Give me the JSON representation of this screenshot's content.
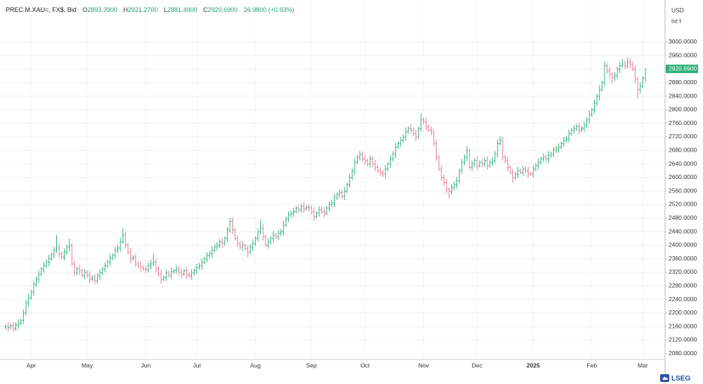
{
  "chart_data": {
    "type": "ohlc",
    "header": {
      "symbol": "PREC.M.XAU=, FX$, Bid",
      "items": [
        {
          "key": "O",
          "value": "2893.3900"
        },
        {
          "key": "H",
          "value": "2921.2700"
        },
        {
          "key": "L",
          "value": "2881.4900"
        },
        {
          "key": "C",
          "value": "2920.6900"
        }
      ],
      "change": "26.9800 (+0.93%)"
    },
    "currency": "USD",
    "unit": "oz t",
    "logo": "LSEG",
    "up_color": "#2fb27a",
    "down_color": "#e87a90",
    "grid": true,
    "ylim": [
      2063,
      3124
    ],
    "yticks": [
      {
        "value": 2080,
        "label": "2080.0000"
      },
      {
        "value": 2120,
        "label": "2120.0000"
      },
      {
        "value": 2160,
        "label": "2160.0000"
      },
      {
        "value": 2200,
        "label": "2200.0000"
      },
      {
        "value": 2240,
        "label": "2240.0000"
      },
      {
        "value": 2280,
        "label": "2280.0000"
      },
      {
        "value": 2320,
        "label": "2320.0000"
      },
      {
        "value": 2360,
        "label": "2360.0000"
      },
      {
        "value": 2400,
        "label": "2400.0000"
      },
      {
        "value": 2440,
        "label": "2440.0000"
      },
      {
        "value": 2480,
        "label": "2480.0000"
      },
      {
        "value": 2520,
        "label": "2520.0000"
      },
      {
        "value": 2560,
        "label": "2560.0000"
      },
      {
        "value": 2600,
        "label": "2600.0000"
      },
      {
        "value": 2640,
        "label": "2640.0000"
      },
      {
        "value": 2680,
        "label": "2680.0000"
      },
      {
        "value": 2720,
        "label": "2720.0000"
      },
      {
        "value": 2760,
        "label": "2760.0000"
      },
      {
        "value": 2800,
        "label": "2800.0000"
      },
      {
        "value": 2840,
        "label": "2840.0000"
      },
      {
        "value": 2880,
        "label": "2880.0000"
      },
      {
        "value": 2920,
        "label": "2920.0000"
      },
      {
        "value": 2960,
        "label": "2960.0000"
      },
      {
        "value": 3000,
        "label": "3000.0000"
      }
    ],
    "categories": [
      null,
      null,
      null,
      null,
      null,
      null,
      null,
      null,
      null,
      null,
      "Apr",
      null,
      null,
      null,
      null,
      null,
      null,
      null,
      null,
      null,
      null,
      null,
      null,
      null,
      null,
      null,
      null,
      null,
      null,
      null,
      null,
      null,
      "May",
      null,
      null,
      null,
      null,
      null,
      null,
      null,
      null,
      null,
      null,
      null,
      null,
      null,
      null,
      null,
      null,
      null,
      null,
      null,
      null,
      null,
      null,
      "Jun",
      null,
      null,
      null,
      null,
      null,
      null,
      null,
      null,
      null,
      null,
      null,
      null,
      null,
      null,
      null,
      null,
      null,
      null,
      null,
      "Jul",
      null,
      null,
      null,
      null,
      null,
      null,
      null,
      null,
      null,
      null,
      null,
      null,
      null,
      null,
      null,
      null,
      null,
      null,
      null,
      null,
      null,
      null,
      "Aug",
      null,
      null,
      null,
      null,
      null,
      null,
      null,
      null,
      null,
      null,
      null,
      null,
      null,
      null,
      null,
      null,
      null,
      null,
      null,
      null,
      null,
      "Sep",
      null,
      null,
      null,
      null,
      null,
      null,
      null,
      null,
      null,
      null,
      null,
      null,
      null,
      null,
      null,
      null,
      null,
      null,
      null,
      null,
      "Oct",
      null,
      null,
      null,
      null,
      null,
      null,
      null,
      null,
      null,
      null,
      null,
      null,
      null,
      null,
      null,
      null,
      null,
      null,
      null,
      null,
      null,
      null,
      "Nov",
      null,
      null,
      null,
      null,
      null,
      null,
      null,
      null,
      null,
      null,
      null,
      null,
      null,
      null,
      null,
      null,
      null,
      null,
      null,
      null,
      "Dec",
      null,
      null,
      null,
      null,
      null,
      null,
      null,
      null,
      null,
      null,
      null,
      null,
      null,
      null,
      null,
      null,
      null,
      null,
      null,
      null,
      null,
      "2025",
      null,
      null,
      null,
      null,
      null,
      null,
      null,
      null,
      null,
      null,
      null,
      null,
      null,
      null,
      null,
      null,
      null,
      null,
      null,
      null,
      null,
      null,
      "Feb",
      null,
      null,
      null,
      null,
      null,
      null,
      null,
      null,
      null,
      null,
      null,
      null,
      null,
      null,
      null,
      null,
      null,
      null,
      null,
      "Mar",
      null
    ],
    "open": [
      2158,
      2160,
      2158,
      2163,
      2155,
      2165,
      2170,
      2178,
      2200,
      2230,
      2245,
      2262,
      2285,
      2300,
      2315,
      2330,
      2340,
      2350,
      2360,
      2372,
      2385,
      2392,
      2375,
      2365,
      2380,
      2395,
      2400,
      2345,
      2320,
      2330,
      2325,
      2310,
      2320,
      2312,
      2300,
      2305,
      2295,
      2310,
      2318,
      2330,
      2340,
      2350,
      2362,
      2370,
      2385,
      2392,
      2410,
      2430,
      2400,
      2380,
      2360,
      2365,
      2345,
      2340,
      2335,
      2330,
      2328,
      2340,
      2345,
      2350,
      2330,
      2315,
      2300,
      2305,
      2318,
      2312,
      2322,
      2325,
      2330,
      2320,
      2315,
      2325,
      2312,
      2310,
      2318,
      2325,
      2335,
      2340,
      2350,
      2360,
      2370,
      2375,
      2385,
      2395,
      2400,
      2410,
      2405,
      2420,
      2445,
      2470,
      2445,
      2420,
      2405,
      2395,
      2400,
      2390,
      2380,
      2395,
      2405,
      2420,
      2440,
      2450,
      2425,
      2400,
      2410,
      2420,
      2430,
      2425,
      2435,
      2440,
      2460,
      2478,
      2490,
      2495,
      2500,
      2510,
      2505,
      2515,
      2508,
      2512,
      2510,
      2498,
      2485,
      2495,
      2505,
      2500,
      2495,
      2510,
      2520,
      2525,
      2540,
      2550,
      2555,
      2545,
      2560,
      2580,
      2600,
      2620,
      2645,
      2660,
      2668,
      2655,
      2650,
      2640,
      2655,
      2640,
      2630,
      2620,
      2615,
      2610,
      2625,
      2640,
      2655,
      2670,
      2690,
      2700,
      2710,
      2720,
      2735,
      2745,
      2740,
      2730,
      2720,
      2745,
      2770,
      2765,
      2750,
      2740,
      2735,
      2700,
      2660,
      2625,
      2600,
      2585,
      2565,
      2560,
      2570,
      2580,
      2590,
      2620,
      2645,
      2660,
      2680,
      2630,
      2640,
      2650,
      2635,
      2645,
      2640,
      2650,
      2635,
      2645,
      2650,
      2670,
      2700,
      2710,
      2660,
      2650,
      2630,
      2615,
      2600,
      2610,
      2620,
      2615,
      2625,
      2620,
      2612,
      2610,
      2625,
      2635,
      2645,
      2655,
      2660,
      2655,
      2665,
      2670,
      2680,
      2685,
      2690,
      2700,
      2710,
      2715,
      2730,
      2740,
      2745,
      2750,
      2740,
      2745,
      2755,
      2770,
      2785,
      2800,
      2820,
      2840,
      2860,
      2880,
      2930,
      2915,
      2905,
      2895,
      2900,
      2920,
      2930,
      2935,
      2930,
      2940,
      2935,
      2920,
      2890,
      2860,
      2870,
      2893.39
    ],
    "high": [
      2168,
      2172,
      2169,
      2173,
      2173,
      2182,
      2184,
      2210,
      2238,
      2257,
      2268,
      2295,
      2308,
      2327,
      2336,
      2350,
      2358,
      2372,
      2378,
      2395,
      2430,
      2404,
      2381,
      2390,
      2403,
      2420,
      2406,
      2355,
      2338,
      2342,
      2331,
      2330,
      2328,
      2324,
      2311,
      2315,
      2318,
      2330,
      2336,
      2350,
      2358,
      2374,
      2376,
      2395,
      2400,
      2422,
      2450,
      2440,
      2408,
      2392,
      2371,
      2375,
      2353,
      2352,
      2341,
      2340,
      2348,
      2357,
      2375,
      2360,
      2338,
      2327,
      2311,
      2328,
      2326,
      2334,
      2331,
      2340,
      2338,
      2332,
      2331,
      2335,
      2320,
      2330,
      2331,
      2345,
      2348,
      2362,
      2366,
      2380,
      2383,
      2397,
      2401,
      2410,
      2418,
      2422,
      2426,
      2455,
      2480,
      2482,
      2451,
      2430,
      2413,
      2412,
      2406,
      2400,
      2403,
      2417,
      2426,
      2450,
      2475,
      2462,
      2431,
      2420,
      2428,
      2442,
      2436,
      2445,
      2448,
      2472,
      2484,
      2500,
      2503,
      2512,
      2516,
      2520,
      2523,
      2527,
      2518,
      2522,
      2518,
      2510,
      2501,
      2515,
      2513,
      2512,
      2516,
      2530,
      2533,
      2552,
      2556,
      2565,
      2563,
      2572,
      2586,
      2610,
      2628,
      2657,
      2666,
      2678,
      2676,
      2667,
      2656,
      2665,
      2663,
      2652,
      2636,
      2630,
      2623,
      2637,
      2646,
      2665,
      2678,
      2702,
      2706,
      2720,
      2728,
      2747,
      2751,
      2755,
      2748,
      2742,
      2751,
      2790,
      2778,
      2777,
      2756,
      2750,
      2743,
      2712,
      2666,
      2635,
      2608,
      2597,
      2571,
      2580,
      2588,
      2602,
      2626,
      2655,
      2668,
      2692,
      2686,
      2650,
      2658,
      2662,
      2651,
      2655,
      2658,
      2662,
      2651,
      2660,
      2678,
      2712,
      2722,
      2720,
      2668,
      2662,
      2636,
      2625,
      2618,
      2632,
      2626,
      2635,
      2633,
      2632,
      2618,
      2635,
      2643,
      2657,
      2661,
      2670,
      2668,
      2677,
      2676,
      2690,
      2693,
      2702,
      2706,
      2720,
      2723,
      2742,
      2746,
      2755,
      2758,
      2762,
      2751,
      2765,
      2778,
      2797,
      2806,
      2830,
      2848,
      2872,
      2886,
      2942,
      2938,
      2927,
      2911,
      2910,
      2928,
      2942,
      2950,
      2945,
      2955,
      2952,
      2941,
      2930,
      2898,
      2882,
      2899,
      2921.27
    ],
    "low": [
      2150,
      2146,
      2152,
      2145,
      2147,
      2153,
      2164,
      2168,
      2192,
      2218,
      2239,
      2252,
      2277,
      2288,
      2309,
      2320,
      2332,
      2338,
      2354,
      2362,
      2377,
      2363,
      2359,
      2355,
      2372,
      2383,
      2339,
      2310,
      2312,
      2313,
      2304,
      2300,
      2304,
      2288,
      2294,
      2285,
      2287,
      2298,
      2312,
      2320,
      2332,
      2338,
      2356,
      2360,
      2377,
      2380,
      2404,
      2390,
      2372,
      2348,
      2354,
      2335,
      2332,
      2323,
      2324,
      2318,
      2320,
      2328,
      2339,
      2320,
      2307,
      2288,
      2294,
      2295,
      2304,
      2300,
      2316,
      2315,
      2312,
      2303,
      2309,
      2302,
      2302,
      2298,
      2312,
      2315,
      2327,
      2328,
      2344,
      2350,
      2362,
      2363,
      2379,
      2385,
      2392,
      2393,
      2399,
      2410,
      2437,
      2433,
      2414,
      2395,
      2387,
      2383,
      2384,
      2365,
      2372,
      2383,
      2399,
      2410,
      2432,
      2413,
      2394,
      2390,
      2402,
      2408,
      2419,
      2415,
      2427,
      2428,
      2454,
      2468,
      2482,
      2483,
      2494,
      2495,
      2497,
      2496,
      2502,
      2500,
      2490,
      2473,
      2479,
      2485,
      2492,
      2483,
      2489,
      2500,
      2512,
      2513,
      2534,
      2540,
      2537,
      2533,
      2554,
      2570,
      2592,
      2608,
      2639,
      2650,
      2647,
      2638,
      2634,
      2630,
      2632,
      2618,
      2614,
      2605,
      2602,
      2598,
      2619,
      2630,
      2647,
      2658,
      2684,
      2690,
      2702,
      2708,
      2729,
      2730,
      2722,
      2708,
      2714,
      2735,
      2757,
      2738,
      2734,
      2725,
      2692,
      2648,
      2619,
      2590,
      2577,
      2553,
      2538,
      2550,
      2562,
      2568,
      2584,
      2610,
      2637,
      2648,
      2624,
      2620,
      2632,
      2623,
      2629,
      2630,
      2632,
      2623,
      2629,
      2635,
      2642,
      2658,
      2694,
      2650,
      2642,
      2618,
      2609,
      2585,
      2592,
      2598,
      2609,
      2605,
      2612,
      2600,
      2604,
      2600,
      2617,
      2623,
      2639,
      2645,
      2647,
      2643,
      2659,
      2660,
      2672,
      2673,
      2684,
      2690,
      2702,
      2703,
      2724,
      2730,
      2737,
      2728,
      2734,
      2735,
      2747,
      2758,
      2779,
      2790,
      2812,
      2828,
      2854,
      2870,
      2907,
      2893,
      2878,
      2885,
      2892,
      2908,
      2924,
      2920,
      2922,
      2923,
      2914,
      2880,
      2832,
      2848,
      2864,
      2881.49
    ],
    "close": [
      2160,
      2158,
      2163,
      2155,
      2165,
      2170,
      2178,
      2200,
      2230,
      2245,
      2262,
      2285,
      2300,
      2315,
      2330,
      2340,
      2350,
      2360,
      2372,
      2385,
      2392,
      2375,
      2365,
      2380,
      2395,
      2400,
      2345,
      2320,
      2330,
      2325,
      2310,
      2320,
      2312,
      2300,
      2305,
      2295,
      2310,
      2318,
      2330,
      2340,
      2350,
      2362,
      2370,
      2385,
      2392,
      2410,
      2430,
      2400,
      2380,
      2360,
      2365,
      2345,
      2340,
      2335,
      2330,
      2328,
      2340,
      2345,
      2350,
      2330,
      2315,
      2300,
      2305,
      2318,
      2312,
      2322,
      2325,
      2330,
      2320,
      2315,
      2325,
      2312,
      2310,
      2318,
      2325,
      2335,
      2340,
      2350,
      2360,
      2370,
      2375,
      2385,
      2395,
      2400,
      2410,
      2405,
      2420,
      2445,
      2470,
      2445,
      2420,
      2405,
      2395,
      2400,
      2390,
      2380,
      2395,
      2405,
      2420,
      2440,
      2450,
      2425,
      2400,
      2410,
      2420,
      2430,
      2425,
      2435,
      2440,
      2460,
      2478,
      2490,
      2495,
      2500,
      2510,
      2505,
      2515,
      2508,
      2512,
      2510,
      2498,
      2485,
      2495,
      2505,
      2500,
      2495,
      2510,
      2520,
      2525,
      2540,
      2550,
      2555,
      2545,
      2560,
      2580,
      2600,
      2620,
      2645,
      2660,
      2668,
      2655,
      2650,
      2640,
      2655,
      2640,
      2630,
      2620,
      2615,
      2610,
      2625,
      2640,
      2655,
      2670,
      2690,
      2700,
      2710,
      2720,
      2735,
      2745,
      2740,
      2730,
      2720,
      2745,
      2770,
      2765,
      2750,
      2740,
      2735,
      2700,
      2660,
      2625,
      2600,
      2585,
      2565,
      2560,
      2570,
      2580,
      2590,
      2620,
      2645,
      2660,
      2680,
      2630,
      2640,
      2650,
      2635,
      2645,
      2640,
      2650,
      2635,
      2645,
      2650,
      2670,
      2700,
      2710,
      2660,
      2650,
      2630,
      2615,
      2600,
      2610,
      2620,
      2615,
      2625,
      2620,
      2612,
      2610,
      2625,
      2635,
      2645,
      2655,
      2660,
      2655,
      2665,
      2670,
      2680,
      2685,
      2690,
      2700,
      2710,
      2715,
      2730,
      2740,
      2745,
      2750,
      2740,
      2745,
      2755,
      2770,
      2785,
      2800,
      2820,
      2840,
      2860,
      2880,
      2930,
      2915,
      2905,
      2895,
      2900,
      2920,
      2930,
      2935,
      2930,
      2940,
      2935,
      2920,
      2890,
      2860,
      2870,
      2893,
      2920.69
    ]
  }
}
